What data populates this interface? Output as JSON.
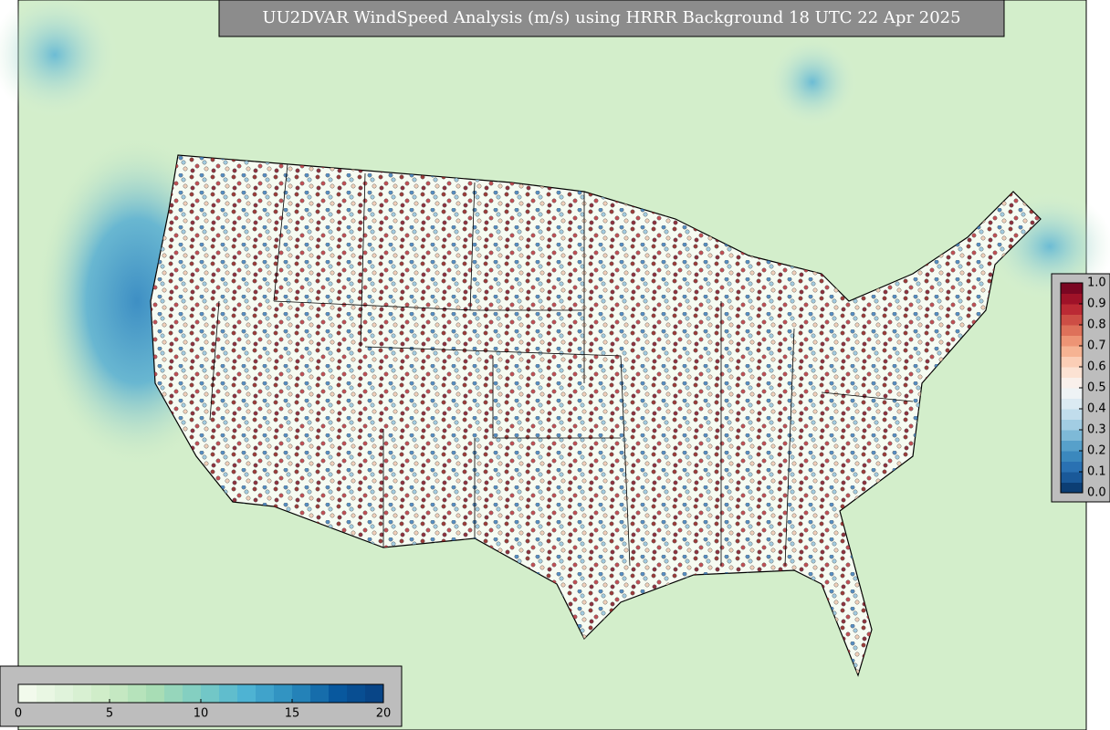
{
  "title": "UU2DVAR WindSpeed Analysis (m/s) using HRRR Background 18 UTC 22 Apr 2025",
  "windspeed_colorbar": {
    "range": [
      0,
      20
    ],
    "ticks": [
      0,
      5,
      10,
      15,
      20
    ]
  },
  "station_colorbar": {
    "range": [
      0,
      1
    ],
    "ticks": [
      {
        "value": 0,
        "label": "0.0"
      },
      {
        "value": 0.1,
        "label": "0.1"
      },
      {
        "value": 0.2,
        "label": "0.2"
      },
      {
        "value": 0.3,
        "label": "0.3"
      },
      {
        "value": 0.4,
        "label": "0.4"
      },
      {
        "value": 0.5,
        "label": "0.5"
      },
      {
        "value": 0.6,
        "label": "0.6"
      },
      {
        "value": 0.7,
        "label": "0.7"
      },
      {
        "value": 0.8,
        "label": "0.8"
      },
      {
        "value": 0.9,
        "label": "0.9"
      },
      {
        "value": 1,
        "label": "1.0"
      }
    ]
  }
}
